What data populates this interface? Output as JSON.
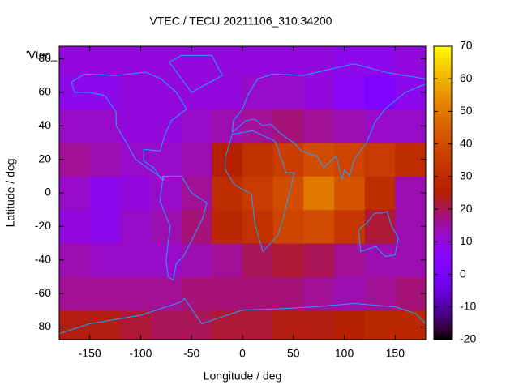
{
  "chart_data": {
    "type": "heatmap",
    "title": "VTEC / TECU 20211106_310.34200",
    "annotation": "'Vtec_",
    "x_label": "Longitude / deg",
    "y_label": "Latitude / deg",
    "xbins": [
      -180,
      -150,
      -120,
      -90,
      -60,
      -30,
      0,
      30,
      60,
      90,
      120,
      150,
      180
    ],
    "ybins": [
      -90,
      -70,
      -50,
      -30,
      -10,
      10,
      30,
      50,
      70,
      90
    ],
    "z": [
      [
        24,
        24,
        22,
        20,
        20,
        22,
        22,
        24,
        24,
        26,
        28,
        28
      ],
      [
        16,
        16,
        16,
        16,
        18,
        18,
        18,
        18,
        16,
        14,
        16,
        18
      ],
      [
        14,
        12,
        12,
        12,
        14,
        16,
        20,
        22,
        20,
        16,
        14,
        14
      ],
      [
        10,
        8,
        12,
        14,
        18,
        28,
        32,
        38,
        40,
        34,
        22,
        14
      ],
      [
        12,
        8,
        10,
        12,
        16,
        30,
        35,
        40,
        50,
        42,
        30,
        14
      ],
      [
        16,
        14,
        12,
        12,
        14,
        25,
        32,
        36,
        40,
        38,
        35,
        30
      ],
      [
        12,
        12,
        10,
        10,
        12,
        14,
        16,
        18,
        16,
        14,
        12,
        12
      ],
      [
        8,
        8,
        10,
        10,
        10,
        10,
        12,
        12,
        10,
        6,
        2,
        8
      ],
      [
        10,
        10,
        10,
        10,
        10,
        10,
        10,
        10,
        10,
        8,
        8,
        10
      ]
    ],
    "xlim": [
      -180,
      180
    ],
    "ylim": [
      -87.5,
      87.5
    ],
    "xticks": [
      -150,
      -100,
      -50,
      0,
      50,
      100,
      150
    ],
    "yticks": [
      -80,
      -60,
      -40,
      -20,
      0,
      20,
      40,
      60,
      80
    ],
    "cblim": [
      -20,
      70
    ],
    "cbticks": [
      -20,
      -10,
      0,
      10,
      20,
      30,
      40,
      50,
      60,
      70
    ]
  }
}
